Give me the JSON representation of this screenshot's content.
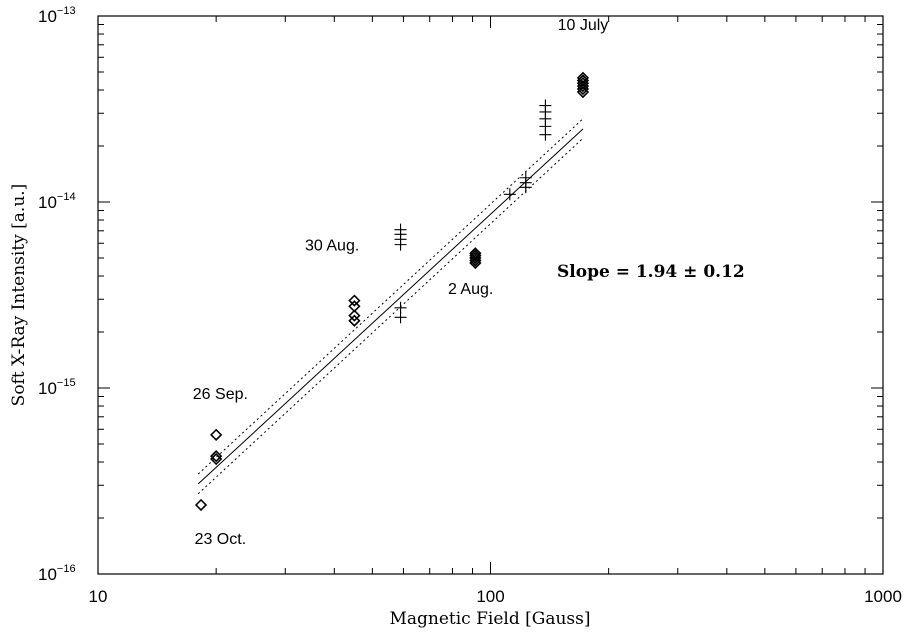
{
  "chart_data": {
    "type": "scatter",
    "xscale": "log",
    "yscale": "log",
    "xlabel": "Magnetic Field [Gauss]",
    "ylabel": "Soft X-Ray Intensity [a.u.]",
    "xlim": [
      10,
      1000
    ],
    "ylim": [
      1e-16,
      1e-13
    ],
    "grid": false,
    "x_ticks": [
      {
        "value": 10,
        "label": "10"
      },
      {
        "value": 100,
        "label": "100"
      },
      {
        "value": 1000,
        "label": "1000"
      }
    ],
    "y_ticks": [
      {
        "value": 1e-16,
        "base": "10",
        "exp": "−16"
      },
      {
        "value": 1e-15,
        "base": "10",
        "exp": "−15"
      },
      {
        "value": 1e-14,
        "base": "10",
        "exp": "−14"
      },
      {
        "value": 1e-13,
        "base": "10",
        "exp": "−13"
      }
    ],
    "series": [
      {
        "marker": "diamond",
        "points": [
          [
            18.3,
            2.35e-16
          ],
          [
            20.0,
            4.15e-16
          ],
          [
            20.0,
            4.3e-16
          ],
          [
            20.0,
            5.6e-16
          ],
          [
            45.0,
            2.3e-15
          ],
          [
            45.0,
            2.45e-15
          ],
          [
            45.0,
            2.75e-15
          ],
          [
            45.0,
            2.95e-15
          ],
          [
            91.5,
            4.7e-15
          ],
          [
            91.5,
            4.85e-15
          ],
          [
            91.5,
            5e-15
          ],
          [
            91.5,
            5.15e-15
          ],
          [
            91.5,
            5.3e-15
          ],
          [
            172,
            3.9e-14
          ],
          [
            172,
            4.05e-14
          ],
          [
            172,
            4.2e-14
          ],
          [
            172,
            4.35e-14
          ],
          [
            172,
            4.5e-14
          ],
          [
            172,
            4.65e-14
          ]
        ]
      },
      {
        "marker": "plus",
        "points": [
          [
            59,
            2.4e-15
          ],
          [
            59,
            2.7e-15
          ],
          [
            59,
            5.9e-15
          ],
          [
            59,
            6.3e-15
          ],
          [
            59,
            6.7e-15
          ],
          [
            59,
            7.1e-15
          ],
          [
            112,
            1.1e-14
          ],
          [
            123,
            1.2e-14
          ],
          [
            123,
            1.27e-14
          ],
          [
            123,
            1.35e-14
          ],
          [
            138,
            2.3e-14
          ],
          [
            138,
            2.55e-14
          ],
          [
            138,
            2.8e-14
          ],
          [
            138,
            3.05e-14
          ],
          [
            138,
            3.3e-14
          ]
        ]
      }
    ],
    "fit": {
      "slope": 1.94,
      "slope_err": 0.12,
      "x_range": [
        18,
        172
      ],
      "y_start": 3.05e-16,
      "y_end": 2.47e-14,
      "conf_start": [
        2.7e-16,
        3.45e-16
      ],
      "conf_end": [
        2.2e-14,
        2.8e-14
      ]
    },
    "annotations": [
      {
        "text": "10 July",
        "x": 172,
        "y": 8.4e-14,
        "anchor": "middle"
      },
      {
        "text": "30 Aug.",
        "x": 39.5,
        "y": 5.5e-15,
        "anchor": "middle"
      },
      {
        "text": "2 Aug.",
        "x": 89,
        "y": 3.2e-15,
        "anchor": "middle"
      },
      {
        "text": "26 Sep.",
        "x": 20.5,
        "y": 8.7e-16,
        "anchor": "middle"
      },
      {
        "text": "23 Oct.",
        "x": 20.5,
        "y": 1.45e-16,
        "anchor": "middle"
      }
    ],
    "slope_label": "Slope = 1.94 ± 0.12"
  }
}
